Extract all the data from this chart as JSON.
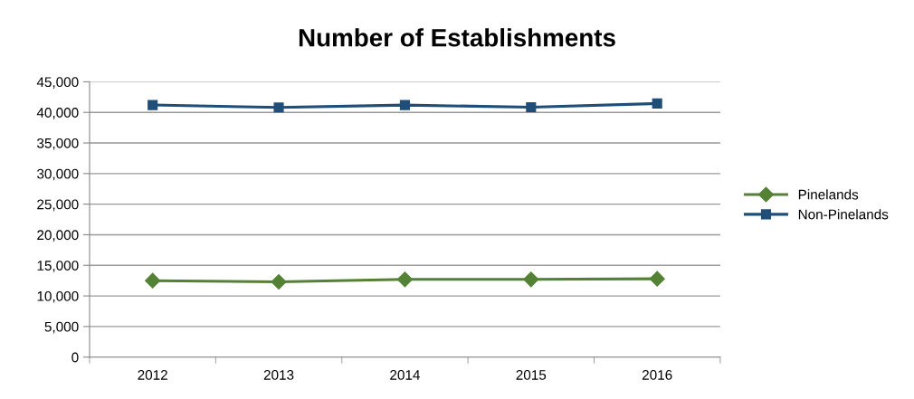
{
  "chart_data": {
    "type": "line",
    "title": "Number of Establishments",
    "categories": [
      "2012",
      "2013",
      "2014",
      "2015",
      "2016"
    ],
    "series": [
      {
        "name": "Pinelands",
        "color": "#548235",
        "marker": "diamond",
        "values": [
          12500,
          12300,
          12700,
          12700,
          12800
        ]
      },
      {
        "name": "Non-Pinelands",
        "color": "#1f4e79",
        "marker": "square",
        "values": [
          41200,
          40800,
          41200,
          40850,
          41450
        ]
      }
    ],
    "ylim": [
      0,
      45000
    ],
    "yticks": [
      {
        "value": 0,
        "label": "0"
      },
      {
        "value": 5000,
        "label": "5,000"
      },
      {
        "value": 10000,
        "label": "10,000"
      },
      {
        "value": 15000,
        "label": "15,000"
      },
      {
        "value": 20000,
        "label": "20,000"
      },
      {
        "value": 25000,
        "label": "25,000"
      },
      {
        "value": 30000,
        "label": "30,000"
      },
      {
        "value": 35000,
        "label": "35,000"
      },
      {
        "value": 40000,
        "label": "40,000"
      },
      {
        "value": 45000,
        "label": "45,000"
      }
    ],
    "grid": "y",
    "legend": "right",
    "line_style": "solid"
  }
}
